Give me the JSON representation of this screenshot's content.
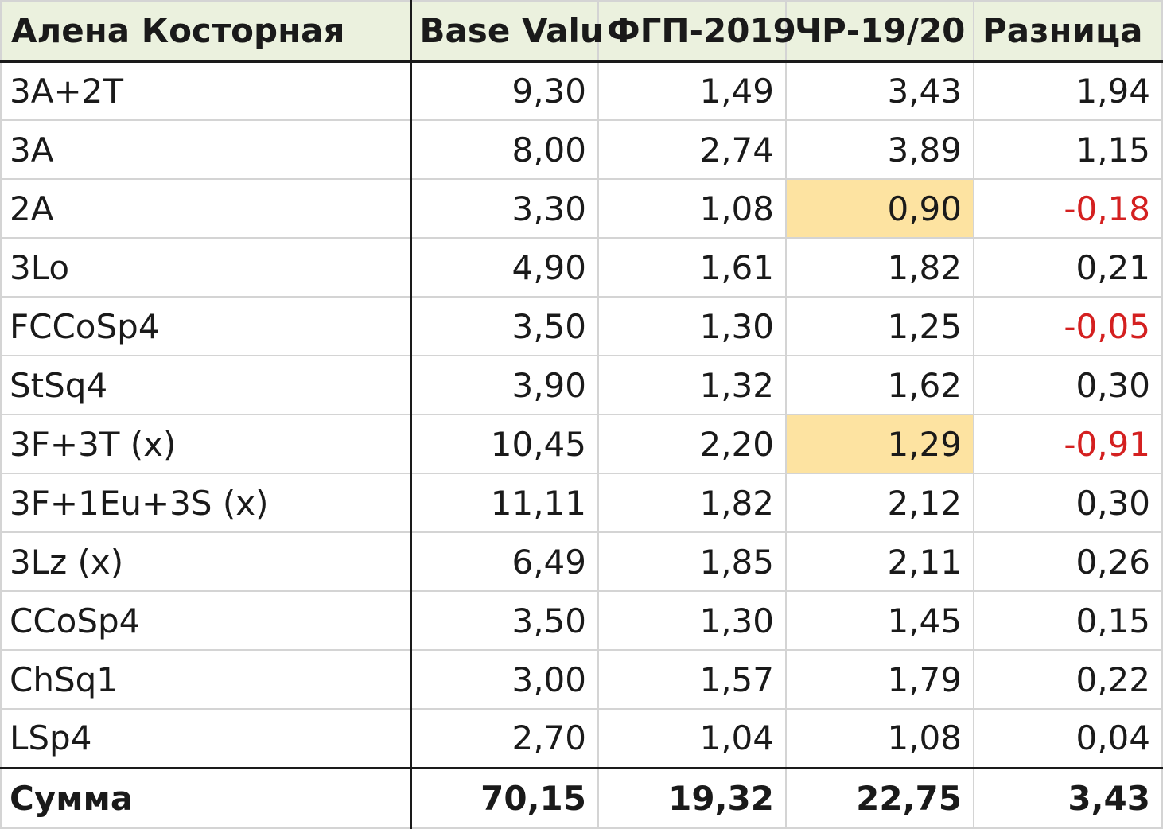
{
  "table": {
    "headers": [
      "Алена Косторная",
      "Base Valu",
      "ФГП-2019",
      "ЧР-19/20",
      "Разница"
    ],
    "rows": [
      {
        "element": "3A+2T",
        "base_value": "9,30",
        "fgp_2019": "1,49",
        "chr_19_20": "3,43",
        "diff": "1,94"
      },
      {
        "element": "3A",
        "base_value": "8,00",
        "fgp_2019": "2,74",
        "chr_19_20": "3,89",
        "diff": "1,15"
      },
      {
        "element": "2A",
        "base_value": "3,30",
        "fgp_2019": "1,08",
        "chr_19_20": "0,90",
        "diff": "-0,18"
      },
      {
        "element": "3Lo",
        "base_value": "4,90",
        "fgp_2019": "1,61",
        "chr_19_20": "1,82",
        "diff": "0,21"
      },
      {
        "element": "FCCoSp4",
        "base_value": "3,50",
        "fgp_2019": "1,30",
        "chr_19_20": "1,25",
        "diff": "-0,05"
      },
      {
        "element": "StSq4",
        "base_value": "3,90",
        "fgp_2019": "1,32",
        "chr_19_20": "1,62",
        "diff": "0,30"
      },
      {
        "element": "3F+3T (x)",
        "base_value": "10,45",
        "fgp_2019": "2,20",
        "chr_19_20": "1,29",
        "diff": "-0,91"
      },
      {
        "element": "3F+1Eu+3S (x)",
        "base_value": "11,11",
        "fgp_2019": "1,82",
        "chr_19_20": "2,12",
        "diff": "0,30"
      },
      {
        "element": "3Lz (x)",
        "base_value": "6,49",
        "fgp_2019": "1,85",
        "chr_19_20": "2,11",
        "diff": "0,26"
      },
      {
        "element": "CCoSp4",
        "base_value": "3,50",
        "fgp_2019": "1,30",
        "chr_19_20": "1,45",
        "diff": "0,15"
      },
      {
        "element": "ChSq1",
        "base_value": "3,00",
        "fgp_2019": "1,57",
        "chr_19_20": "1,79",
        "diff": "0,22"
      },
      {
        "element": "LSp4",
        "base_value": "2,70",
        "fgp_2019": "1,04",
        "chr_19_20": "1,08",
        "diff": "0,04"
      }
    ],
    "total": {
      "element": "Сумма",
      "base_value": "70,15",
      "fgp_2019": "19,32",
      "chr_19_20": "22,75",
      "diff": "3,43"
    }
  },
  "colors": {
    "header_bg": "#ebf1de",
    "highlight_bg": "#fde3a1",
    "negative_text": "#d42020",
    "grid_line": "#d4d4d4",
    "thick_border": "#1a1a1a"
  }
}
